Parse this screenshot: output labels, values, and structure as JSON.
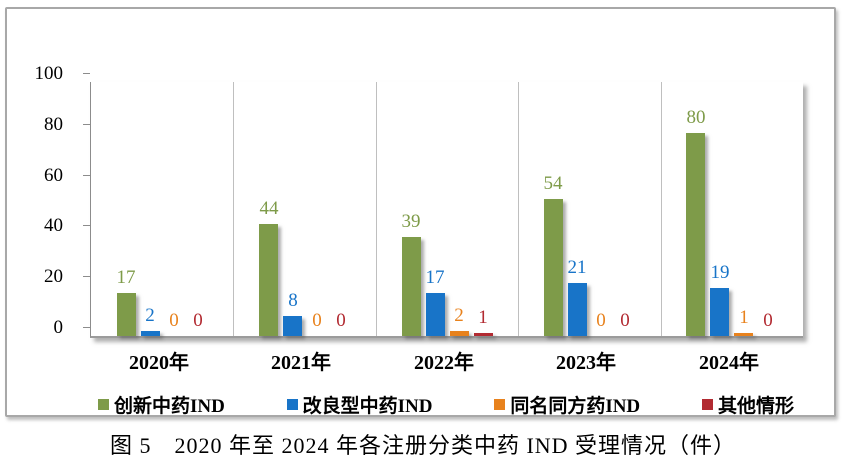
{
  "figure": {
    "caption": "图 5　2020 年至 2024 年各注册分类中药 IND 受理情况（件）"
  },
  "chart_data": {
    "type": "bar",
    "title": "",
    "xlabel": "",
    "ylabel": "",
    "categories": [
      "2020年",
      "2021年",
      "2022年",
      "2023年",
      "2024年"
    ],
    "series": [
      {
        "name": "创新中药IND",
        "color": "#7E9B49",
        "values": [
          17,
          44,
          39,
          54,
          80
        ]
      },
      {
        "name": "改良型中药IND",
        "color": "#1874C8",
        "values": [
          2,
          8,
          17,
          21,
          19
        ]
      },
      {
        "name": "同名同方药IND",
        "color": "#E8821D",
        "values": [
          0,
          0,
          2,
          0,
          1
        ]
      },
      {
        "name": "其他情形",
        "color": "#B22A31",
        "values": [
          0,
          0,
          1,
          0,
          0
        ]
      }
    ],
    "ylim": [
      0,
      100
    ],
    "yticks": [
      0,
      20,
      40,
      60,
      80,
      100
    ],
    "grid": "vertical-category-separators",
    "legend_position": "bottom",
    "data_labels": true
  }
}
